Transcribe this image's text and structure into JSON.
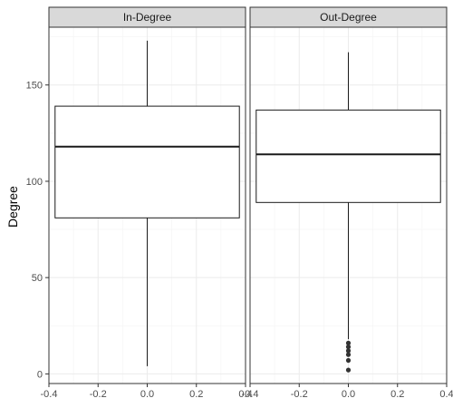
{
  "chart_data": {
    "type": "boxplot",
    "ylabel": "Degree",
    "xlabel": "",
    "xlim": [
      -0.4,
      0.4
    ],
    "ylim": [
      -5,
      180
    ],
    "x_ticks": [
      -0.4,
      -0.2,
      0.0,
      0.2,
      0.4
    ],
    "x_tick_labels": [
      "-0.4",
      "-0.2",
      "0.0",
      "0.2",
      "0.4"
    ],
    "y_ticks": [
      0,
      50,
      100,
      150
    ],
    "y_tick_labels": [
      "0",
      "50",
      "100",
      "150"
    ],
    "grid": true,
    "box_x_range": [
      -0.375,
      0.375
    ],
    "facets": [
      {
        "label": "In-Degree",
        "box": {
          "min": 4,
          "q1": 81,
          "median": 118,
          "q3": 139,
          "max": 173
        },
        "outliers": []
      },
      {
        "label": "Out-Degree",
        "box": {
          "min": 18,
          "q1": 89,
          "median": 114,
          "q3": 137,
          "max": 167
        },
        "outliers": [
          16,
          14,
          12,
          10,
          7,
          2
        ]
      }
    ],
    "colors": {
      "strip_bg": "#d9d9d9",
      "border": "#333333",
      "grid_major": "#ebebeb",
      "grid_minor": "#f5f5f5",
      "box_line": "#1a1a1a",
      "outlier": "#333333"
    }
  }
}
